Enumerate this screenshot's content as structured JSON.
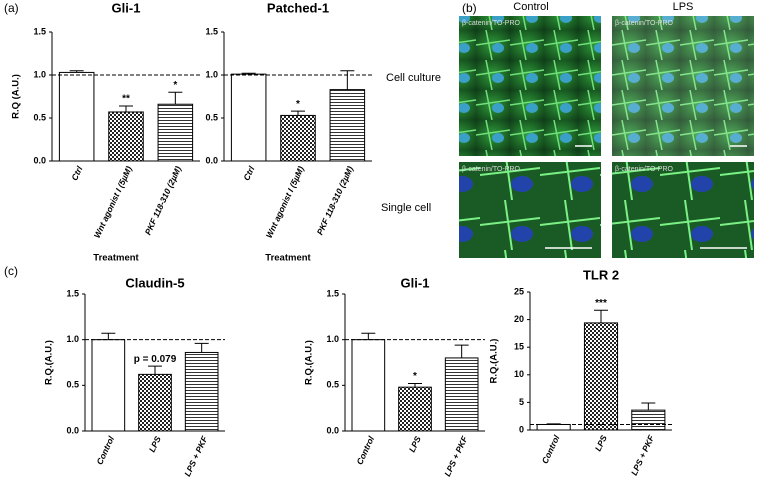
{
  "panel_labels": [
    "(a)",
    "(b)",
    "(c)"
  ],
  "chart_data": [
    {
      "type": "bar",
      "title": "Gli-1",
      "x_label": "Treatment",
      "y_label": "R.Q (A.U.)",
      "categories": [
        "Ctrl",
        "Wnt agonist I (5µM)",
        "PKF 118-310 (2µM)"
      ],
      "values": [
        1.03,
        0.57,
        0.66
      ],
      "errors": [
        0.02,
        0.07,
        0.14
      ],
      "annotations": [
        null,
        "**",
        "*"
      ],
      "fills": [
        "white",
        "checker",
        "stripes"
      ],
      "reference_line": 1.0,
      "ylim": [
        0,
        1.5
      ],
      "yticks": [
        {
          "value": 0,
          "label": "0.0"
        },
        {
          "value": 0.5,
          "label": "0.5"
        },
        {
          "value": 1,
          "label": "1.0"
        },
        {
          "value": 1.5,
          "label": "1.5"
        }
      ]
    },
    {
      "type": "bar",
      "title": "Patched-1",
      "x_label": "Treatment",
      "categories": [
        "Ctrl",
        "Wnt agonist I (5µM)",
        "PKF 118-310 (2µM)"
      ],
      "values": [
        1.01,
        0.53,
        0.83
      ],
      "errors": [
        0.01,
        0.05,
        0.22
      ],
      "annotations": [
        null,
        "*",
        null
      ],
      "fills": [
        "white",
        "checker",
        "stripes"
      ],
      "reference_line": 1.0,
      "ylim": [
        0,
        1.5
      ],
      "yticks": [
        {
          "value": 0,
          "label": "0.0"
        },
        {
          "value": 0.5,
          "label": "0.5"
        },
        {
          "value": 1,
          "label": "1.0"
        },
        {
          "value": 1.5,
          "label": "1.5"
        }
      ]
    },
    {
      "type": "bar",
      "title": "Claudin-5",
      "y_label": "R.Q.(A.U.)",
      "categories": [
        "Control",
        "LPS",
        "LPS + PKF"
      ],
      "values": [
        1.0,
        0.62,
        0.86
      ],
      "errors": [
        0.07,
        0.09,
        0.1
      ],
      "annotations": [
        null,
        "p = 0.079",
        null
      ],
      "fills": [
        "white",
        "checker",
        "stripes"
      ],
      "reference_line": 1.0,
      "ylim": [
        0,
        1.5
      ],
      "yticks": [
        {
          "value": 0,
          "label": "0.0"
        },
        {
          "value": 0.5,
          "label": "0.5"
        },
        {
          "value": 1,
          "label": "1.0"
        },
        {
          "value": 1.5,
          "label": "1.5"
        }
      ]
    },
    {
      "type": "bar",
      "title": "Gli-1",
      "y_label": "R.Q.(A.U.)",
      "categories": [
        "Control",
        "LPS",
        "LPS + PKF"
      ],
      "values": [
        1.0,
        0.48,
        0.8
      ],
      "errors": [
        0.07,
        0.04,
        0.14
      ],
      "annotations": [
        null,
        "*",
        null
      ],
      "fills": [
        "white",
        "checker",
        "stripes"
      ],
      "reference_line": 1.0,
      "ylim": [
        0,
        1.5
      ],
      "yticks": [
        {
          "value": 0,
          "label": "0.0"
        },
        {
          "value": 0.5,
          "label": "0.5"
        },
        {
          "value": 1,
          "label": "1.0"
        },
        {
          "value": 1.5,
          "label": "1.5"
        }
      ]
    },
    {
      "type": "bar",
      "title": "TLR 2",
      "y_label": "R.Q.(A.U.)",
      "categories": [
        "Control",
        "LPS",
        "LPS + PKF"
      ],
      "values": [
        1.0,
        19.4,
        3.6
      ],
      "errors": [
        0.1,
        2.3,
        1.3
      ],
      "annotations": [
        null,
        "***",
        null
      ],
      "fills": [
        "white",
        "checker",
        "stripes"
      ],
      "reference_line": 1.0,
      "ylim": [
        0,
        25
      ],
      "yticks": [
        0,
        5,
        10,
        15,
        20,
        25
      ]
    }
  ],
  "panel_b": {
    "columns": [
      "Control",
      "LPS"
    ],
    "rows": [
      "Cell culture",
      "Single cell"
    ],
    "image_captions": [
      "β-catenin/TO-PRO",
      "β-catenin/TO-PRO",
      "β-catenin/TO-PRO",
      "β-catenin/TO-PRO"
    ]
  }
}
